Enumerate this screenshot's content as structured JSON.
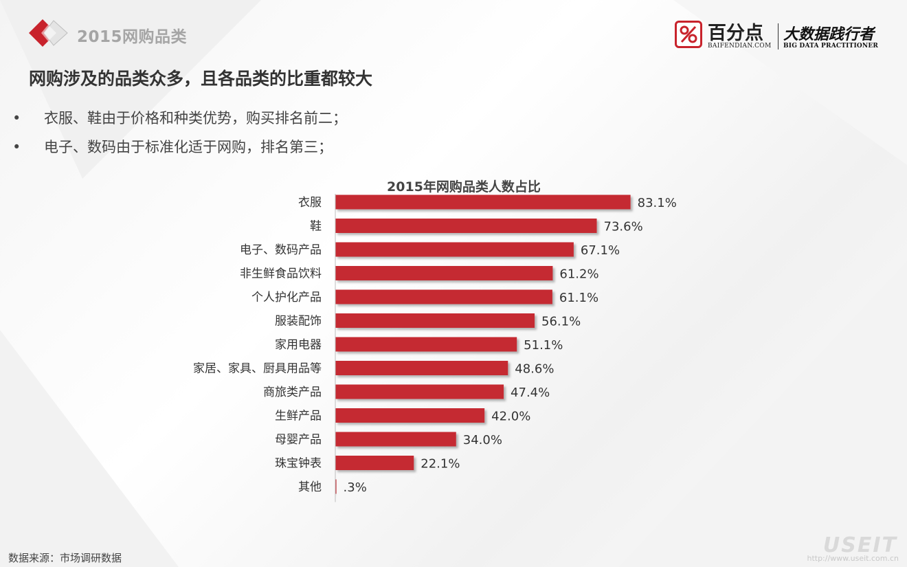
{
  "header": {
    "section_title": "2015网购品类",
    "brand": {
      "name": "百分点",
      "domain": "BAIFENDIAN.COM",
      "slogan": "大数据践行者",
      "slogan_en": "BIG DATA PRACTITIONER",
      "icon": "percent-icon"
    }
  },
  "headline": "网购涉及的品类众多，且各品类的比重都较大",
  "bullets": [
    {
      "marker": "•",
      "text": "衣服、鞋由于价格和种类优势，购买排名前二；"
    },
    {
      "marker": "•",
      "text": "电子、数码由于标准化适于网购，排名第三；"
    }
  ],
  "footer": {
    "source": "数据来源：市场调研数据",
    "watermark": "USEIT",
    "watermark_url": "http://www.useit.com.cn"
  },
  "colors": {
    "bar": "#c52a33",
    "accent": "#c8232c",
    "text": "#333333"
  },
  "chart_data": {
    "type": "bar",
    "orientation": "horizontal",
    "title": "2015年网购品类人数占比",
    "categories": [
      "衣服",
      "鞋",
      "电子、数码产品",
      "非生鲜食品饮料",
      "个人护化产品",
      "服装配饰",
      "家用电器",
      "家居、家具、厨具用品等",
      "商旅类产品",
      "生鲜产品",
      "母婴产品",
      "珠宝钟表",
      "其他"
    ],
    "values": [
      83.1,
      73.6,
      67.1,
      61.2,
      61.1,
      56.1,
      51.1,
      48.6,
      47.4,
      42.0,
      34.0,
      22.1,
      0.3
    ],
    "labels": [
      "83.1%",
      "73.6%",
      "67.1%",
      "61.2%",
      "61.1%",
      "56.1%",
      "51.1%",
      "48.6%",
      "47.4%",
      "42.0%",
      "34.0%",
      "22.1%",
      ".3%"
    ],
    "unit": "%",
    "xlim": [
      0,
      100
    ],
    "xlabel": "",
    "ylabel": "",
    "grid": false,
    "legend": "none"
  }
}
